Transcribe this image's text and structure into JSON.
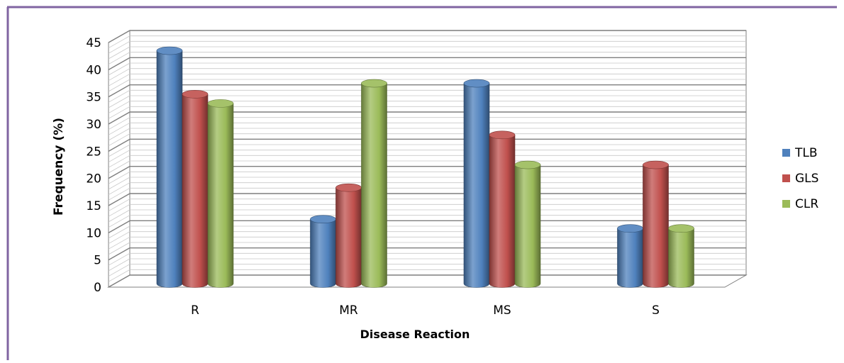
{
  "chart_data": {
    "type": "bar",
    "title": "",
    "xlabel": "Disease Reaction",
    "ylabel": "Frequency (%)",
    "categories": [
      "R",
      "MR",
      "MS",
      "S"
    ],
    "series": [
      {
        "name": "TLB",
        "values": [
          42.5,
          11.5,
          36.5,
          9.8
        ]
      },
      {
        "name": "GLS",
        "values": [
          34.5,
          17.3,
          27.0,
          21.5
        ]
      },
      {
        "name": "CLR",
        "values": [
          32.8,
          36.5,
          21.5,
          9.8
        ]
      }
    ],
    "ylim": [
      0,
      45
    ],
    "yticks": [
      0,
      5,
      10,
      15,
      20,
      25,
      30,
      35,
      40,
      45
    ],
    "grid": true,
    "legend": "right",
    "colors": {
      "TLB": "#4f81bd",
      "GLS": "#c0504d",
      "CLR": "#9bbb59"
    },
    "frame_color": "#8064a2"
  }
}
